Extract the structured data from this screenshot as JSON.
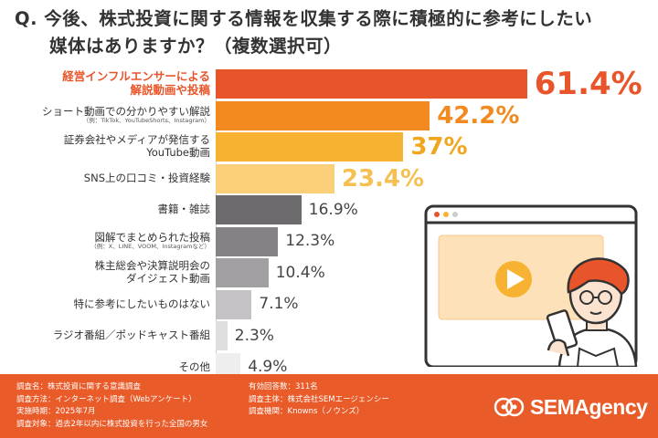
{
  "title": {
    "line1": "Q. 今後、株式投資に関する情報を収集する際に積極的に参考にしたい",
    "line2": "媒体はありますか？（複数選択可）"
  },
  "chart_data": {
    "type": "bar",
    "orientation": "horizontal",
    "categories": [
      {
        "main": [
          "経営インフルエンサーによる",
          "解説動画や投稿"
        ],
        "sub": ""
      },
      {
        "main": [
          "ショート動画での分かりやすい解説"
        ],
        "sub": "（例：TikTok、YouTubeShorts、Instagram）"
      },
      {
        "main": [
          "証券会社やメディアが発信する",
          "YouTube動画"
        ],
        "sub": ""
      },
      {
        "main": [
          "SNS上の口コミ・投資経験"
        ],
        "sub": ""
      },
      {
        "main": [
          "書籍・雑誌"
        ],
        "sub": ""
      },
      {
        "main": [
          "図解でまとめられた投稿"
        ],
        "sub": "（例：X、LINE、VOOM、Instagramなど）"
      },
      {
        "main": [
          "株主総会や決算説明会の",
          "ダイジェスト動画"
        ],
        "sub": ""
      },
      {
        "main": [
          "特に参考にしたいものはない"
        ],
        "sub": ""
      },
      {
        "main": [
          "ラジオ番組／ポッドキャスト番組"
        ],
        "sub": ""
      },
      {
        "main": [
          "その他"
        ],
        "sub": ""
      }
    ],
    "values": [
      61.4,
      42.2,
      37,
      23.4,
      16.9,
      12.3,
      10.4,
      7.1,
      2.3,
      4.9
    ],
    "value_labels": [
      "61.4%",
      "42.2%",
      "37%",
      "23.4%",
      "16.9%",
      "12.3%",
      "10.4%",
      "7.1%",
      "2.3%",
      "4.9%"
    ],
    "unit": "%",
    "colors": [
      "#e8552a",
      "#f38a1f",
      "#f7b231",
      "#fbcf78",
      "#6e6b6e",
      "#858285",
      "#a29fa2",
      "#c4c2c4",
      "#e0dfe0",
      "#eeeeee"
    ],
    "label_colors": [
      "#e8552a",
      "#f38a1f",
      "#f0a61e",
      "#f5bf52",
      "#444444",
      "#444444",
      "#444444",
      "#444444",
      "#444444",
      "#444444"
    ]
  },
  "footer": {
    "left": [
      "調査名：株式投資に関する意識調査",
      "調査方法：インターネット調査（Webアンケート）",
      "実施時期：2025年7月",
      "調査対象：過去2年以内に株式投資を行った全国の男女"
    ],
    "right": [
      "有効回答数：311名",
      "調査主体：株式会社SEMエージェンシー",
      "調査機関：Knowns（ノウンズ）"
    ],
    "logo_text": "SEMAgency"
  },
  "colors": {
    "accent": "#e95b28",
    "text": "#333333"
  }
}
